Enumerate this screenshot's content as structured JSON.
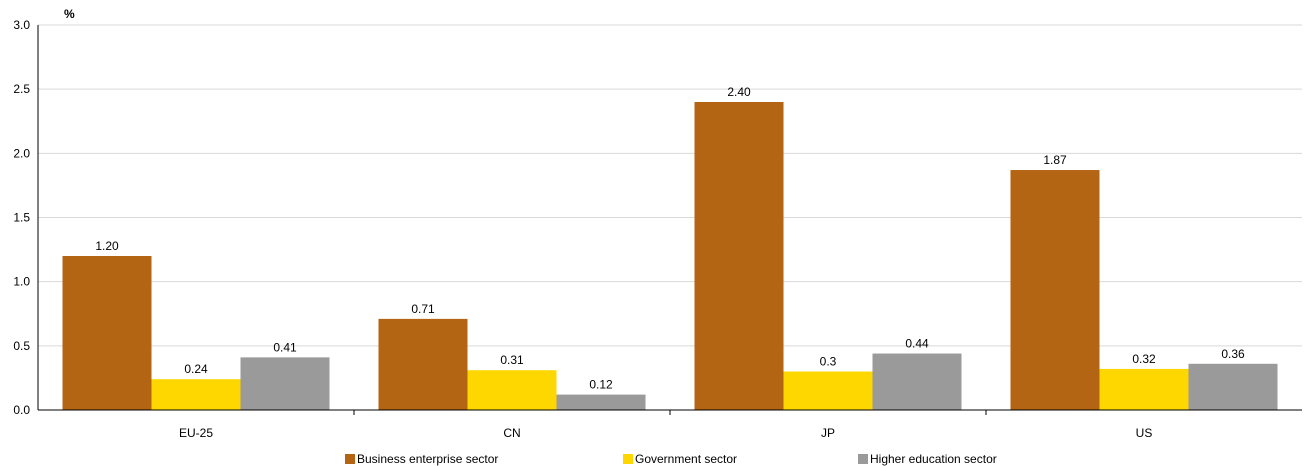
{
  "chart_data": {
    "type": "bar",
    "unit_label": "%",
    "categories": [
      "EU-25",
      "CN",
      "JP",
      "US"
    ],
    "series": [
      {
        "name": "Business enterprise sector",
        "color": "#B46514",
        "values": [
          1.2,
          0.71,
          2.4,
          1.87
        ],
        "labels": [
          "1.20",
          "0.71",
          "2.40",
          "1.87"
        ]
      },
      {
        "name": "Government sector",
        "color": "#FFD700",
        "values": [
          0.24,
          0.31,
          0.3,
          0.32
        ],
        "labels": [
          "0.24",
          "0.31",
          "0.3",
          "0.32"
        ]
      },
      {
        "name": "Higher education sector",
        "color": "#9A9A9A",
        "values": [
          0.41,
          0.12,
          0.44,
          0.36
        ],
        "labels": [
          "0.41",
          "0.12",
          "0.44",
          "0.36"
        ]
      }
    ],
    "ylim": [
      0,
      3.0
    ],
    "yticks": [
      "0.0",
      "0.5",
      "1.0",
      "1.5",
      "2.0",
      "2.5",
      "3.0"
    ],
    "grid": true,
    "legend_position": "bottom"
  }
}
